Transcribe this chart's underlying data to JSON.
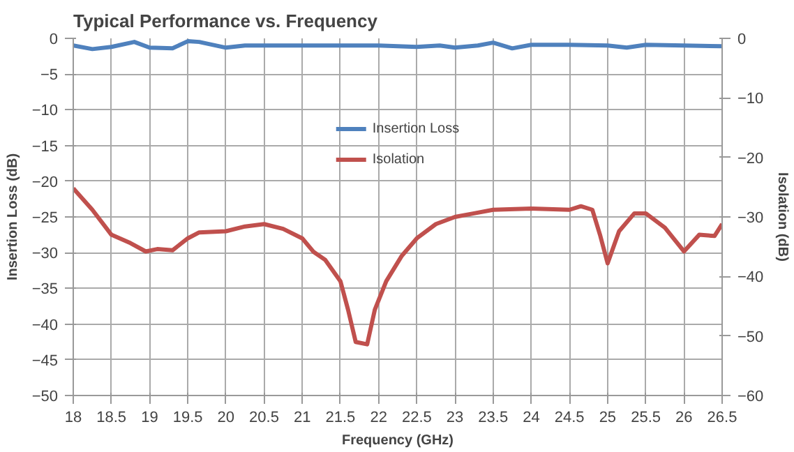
{
  "chart_data": {
    "type": "line",
    "title": "Typical Performance vs. Frequency",
    "xlabel": "Frequency (GHz)",
    "ylabel": "Insertion Loss (dB)",
    "y2label": "Isolation (dB)",
    "xlim": [
      18,
      26.5
    ],
    "xticks": [
      18,
      18.5,
      19,
      19.5,
      20,
      20.5,
      21,
      21.5,
      22,
      22.5,
      23,
      23.5,
      24,
      24.5,
      25,
      25.5,
      26,
      26.5
    ],
    "ylim": [
      -50,
      0
    ],
    "yticks": [
      -50,
      -45,
      -40,
      -35,
      -30,
      -25,
      -20,
      -15,
      -10,
      -5,
      0
    ],
    "y2lim": [
      -60,
      0
    ],
    "y2ticks": [
      -60,
      -50,
      -40,
      -30,
      -20,
      -10,
      0
    ],
    "grid": true,
    "legend": "top",
    "line_style": "solid",
    "series": [
      {
        "name": "Insertion Loss",
        "color": "#4f81bd",
        "x": [
          18,
          18.25,
          18.5,
          18.8,
          19,
          19.3,
          19.5,
          19.65,
          20,
          20.25,
          20.5,
          21,
          21.5,
          22,
          22.5,
          22.8,
          23,
          23.3,
          23.5,
          23.75,
          24,
          24.5,
          25,
          25.25,
          25.5,
          26,
          26.5
        ],
        "values": [
          -1,
          -1.5,
          -1.2,
          -0.5,
          -1.3,
          -1.4,
          -0.4,
          -0.5,
          -1.3,
          -1,
          -1,
          -1,
          -1,
          -1,
          -1.2,
          -1,
          -1.3,
          -1,
          -0.6,
          -1.4,
          -0.9,
          -0.9,
          -1,
          -1.3,
          -0.9,
          -1,
          -1.1
        ]
      },
      {
        "name": "Isolation",
        "color": "#c0504d",
        "axis": "y2",
        "x": [
          18,
          18.25,
          18.5,
          18.75,
          18.95,
          19.1,
          19.3,
          19.5,
          19.65,
          20,
          20.25,
          20.5,
          20.75,
          21,
          21.15,
          21.3,
          21.5,
          21.6,
          21.7,
          21.85,
          21.95,
          22.1,
          22.3,
          22.5,
          22.75,
          23,
          23.25,
          23.5,
          24,
          24.5,
          24.65,
          24.8,
          24.9,
          25,
          25.15,
          25.35,
          25.5,
          25.75,
          26,
          26.2,
          26.4,
          26.5
        ],
        "values": [
          -25.2,
          -28.8,
          -33,
          -34.4,
          -35.8,
          -35.4,
          -35.6,
          -33.6,
          -32.6,
          -32.4,
          -31.6,
          -31.2,
          -32,
          -33.6,
          -35.9,
          -37.2,
          -40.8,
          -45.6,
          -51,
          -51.4,
          -45.6,
          -40.8,
          -36.6,
          -33.6,
          -31.2,
          -30,
          -29.4,
          -28.8,
          -28.6,
          -28.8,
          -28.2,
          -28.8,
          -33,
          -37.8,
          -32.4,
          -29.4,
          -29.4,
          -31.8,
          -35.8,
          -33,
          -33.2,
          -31.2
        ]
      }
    ]
  }
}
